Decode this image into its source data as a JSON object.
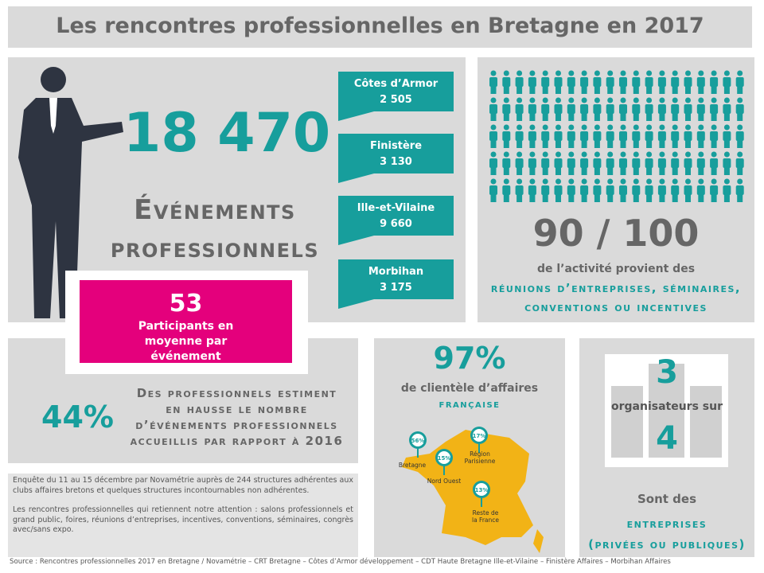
{
  "header": {
    "title": "Les rencontres professionnelles en Bretagne en 2017"
  },
  "events": {
    "total": "18 470",
    "label_line1": "Événements",
    "label_line2": "professionnels"
  },
  "departments": [
    {
      "name": "Côtes d’Armor",
      "value": "2 505"
    },
    {
      "name": "Finistère",
      "value": "3 130"
    },
    {
      "name": "Ille-et-Vilaine",
      "value": "9 660"
    },
    {
      "name": "Morbihan",
      "value": "3 175"
    }
  ],
  "participants": {
    "value": "53",
    "label": "Participants en moyenne par événement"
  },
  "activity": {
    "value": "90 / 100",
    "line1": "de l’activité provient des",
    "line2": "réunions d’entreprises, séminaires,",
    "line3": "conventions ou incentives"
  },
  "increase": {
    "value": "44%",
    "text": "Des professionnels estiment en hausse le nombre d’événements professionnels accueillis par rapport à 2016"
  },
  "clientele": {
    "value": "97%",
    "line1": "de clientèle d’affaires",
    "line2": "française",
    "pins": [
      {
        "value": "56%",
        "label": "Bretagne"
      },
      {
        "value": "15%",
        "label": "Nord Ouest"
      },
      {
        "value": "17%",
        "label": "Région Parisienne"
      },
      {
        "value": "13%",
        "label": "Reste de la France"
      }
    ]
  },
  "organizers": {
    "num": "3",
    "mid": "organisateurs sur",
    "den": "4",
    "line1": "Sont des",
    "line2": "entreprises",
    "line3": "(privées ou publiques)"
  },
  "notes": [
    "Enquête du 11 au 15 décembre par Novamétrie auprès de 244 structures adhérentes aux clubs affaires bretons et quelques structures incontournables non adhérentes.",
    "Les rencontres professionnelles qui retiennent notre attention : salons professionnels et grand public, foires, réunions d’entreprises, incentives, conventions, séminaires, congrès avec/sans expo."
  ],
  "source": "Source : Rencontres professionnelles 2017 en Bretagne / Novamétrie – CRT Bretagne – Côtes d’Armor développement – CDT Haute Bretagne Ille-et-Vilaine – Finistère Affaires – Morbihan Affaires"
}
